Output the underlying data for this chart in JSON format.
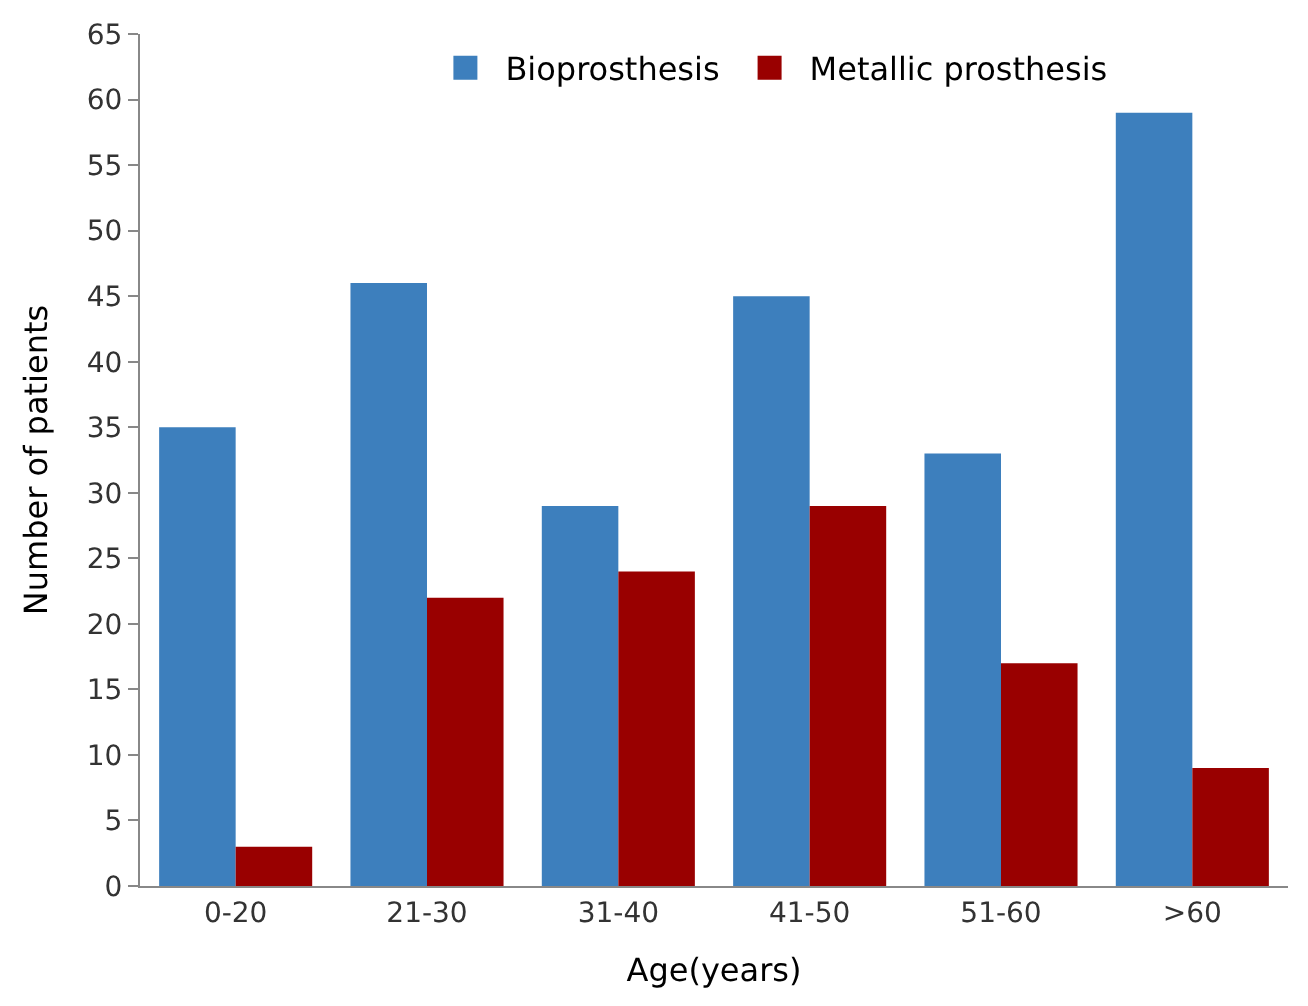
{
  "chart_data": {
    "type": "bar",
    "xlabel": "Age(years)",
    "ylabel": "Number of patients",
    "categories": [
      "0-20",
      "21-30",
      "31-40",
      "41-50",
      "51-60",
      ">60"
    ],
    "series": [
      {
        "name": "Bioprosthesis",
        "color": "#3d7fbd",
        "values": [
          35,
          46,
          29,
          45,
          33,
          59
        ]
      },
      {
        "name": "Metallic prosthesis",
        "color": "#990000",
        "values": [
          3,
          22,
          24,
          29,
          17,
          9
        ]
      }
    ],
    "ylim": [
      0,
      65
    ],
    "yticks": [
      0,
      5,
      10,
      15,
      20,
      25,
      30,
      35,
      40,
      45,
      50,
      55,
      60,
      65
    ],
    "legend": "top"
  }
}
